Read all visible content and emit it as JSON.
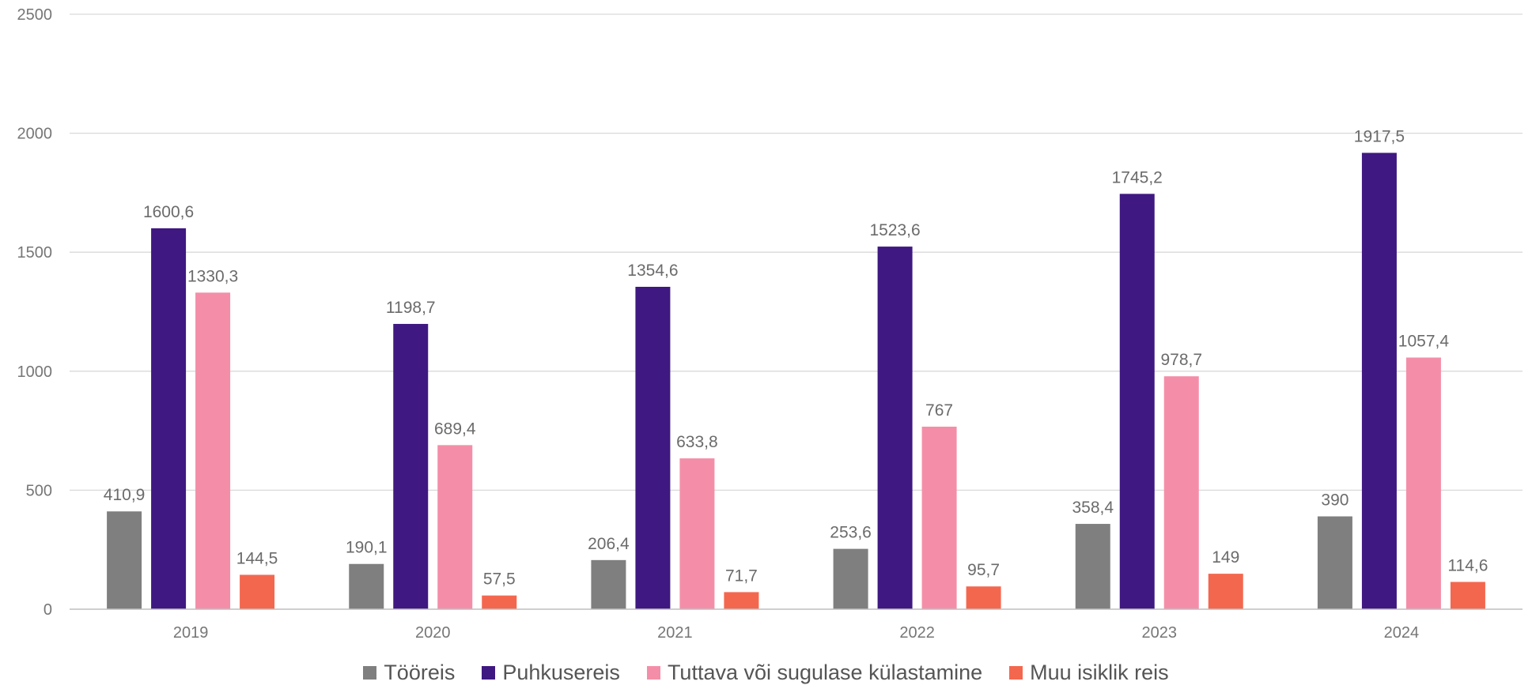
{
  "chart_data": {
    "type": "bar",
    "categories": [
      "2019",
      "2020",
      "2021",
      "2022",
      "2023",
      "2024"
    ],
    "series": [
      {
        "name": "Tööreis",
        "color": "#7f7f7f",
        "values": [
          410.9,
          190.1,
          206.4,
          253.6,
          358.4,
          390
        ],
        "labels": [
          "410,9",
          "190,1",
          "206,4",
          "253,6",
          "358,4",
          "390"
        ]
      },
      {
        "name": "Puhkusereis",
        "color": "#3f1881",
        "values": [
          1600.6,
          1198.7,
          1354.6,
          1523.6,
          1745.2,
          1917.5
        ],
        "labels": [
          "1600,6",
          "1198,7",
          "1354,6",
          "1523,6",
          "1745,2",
          "1917,5"
        ]
      },
      {
        "name": "Tuttava või sugulase külastamine",
        "color": "#f48ea8",
        "values": [
          1330.3,
          689.4,
          633.8,
          767,
          978.7,
          1057.4
        ],
        "labels": [
          "1330,3",
          "689,4",
          "633,8",
          "767",
          "978,7",
          "1057,4"
        ]
      },
      {
        "name": "Muu isiklik reis",
        "color": "#f4674f",
        "values": [
          144.5,
          57.5,
          71.7,
          95.7,
          149,
          114.6
        ],
        "labels": [
          "144,5",
          "57,5",
          "71,7",
          "95,7",
          "149",
          "114,6"
        ]
      }
    ],
    "y_ticks": [
      "0",
      "500",
      "1000",
      "1500",
      "2000",
      "2500"
    ],
    "ylim": [
      0,
      2500
    ],
    "grid": true,
    "legend_position": "bottom",
    "title": "",
    "xlabel": "",
    "ylabel": ""
  }
}
